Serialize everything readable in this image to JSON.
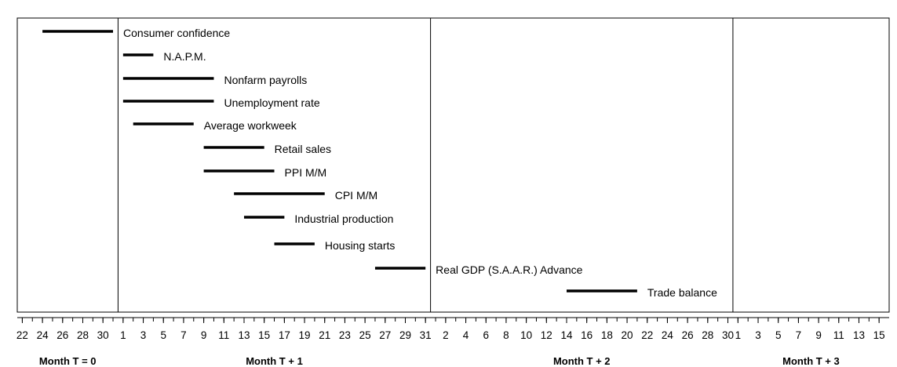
{
  "chart_data": {
    "type": "timeline",
    "color": "#000000",
    "bars": [
      {
        "name": "Consumer confidence",
        "start": 2,
        "end": 9
      },
      {
        "name": "N.A.P.M.",
        "start": 10,
        "end": 13
      },
      {
        "name": "Nonfarm payrolls",
        "start": 10,
        "end": 19
      },
      {
        "name": "Unemployment rate",
        "start": 10,
        "end": 19
      },
      {
        "name": "Average workweek",
        "start": 11,
        "end": 17
      },
      {
        "name": "Retail sales",
        "start": 18,
        "end": 24
      },
      {
        "name": "PPI M/M",
        "start": 18,
        "end": 25
      },
      {
        "name": "CPI M/M",
        "start": 21,
        "end": 30
      },
      {
        "name": "Industrial production",
        "start": 22,
        "end": 26
      },
      {
        "name": "Housing starts",
        "start": 25,
        "end": 29
      },
      {
        "name": "Real GDP (S.A.A.R.)  Advance",
        "start": 35,
        "end": 40
      },
      {
        "name": "Trade balance",
        "start": 54,
        "end": 61
      }
    ],
    "xlim": [
      -0.5,
      86
    ],
    "month_boundaries": [
      9.5,
      40.5,
      70.5
    ],
    "months": [
      "Month  T = 0",
      "Month  T + 1",
      "Month  T + 2",
      "Month  T + 3"
    ],
    "xminorticks": [
      0,
      1,
      2,
      3,
      4,
      5,
      6,
      7,
      8,
      9,
      10,
      11,
      12,
      13,
      14,
      15,
      16,
      17,
      18,
      19,
      20,
      21,
      22,
      23,
      24,
      25,
      26,
      27,
      28,
      29,
      30,
      31,
      32,
      33,
      34,
      35,
      36,
      37,
      38,
      39,
      40,
      41,
      42,
      43,
      44,
      45,
      46,
      47,
      48,
      49,
      50,
      51,
      52,
      53,
      54,
      55,
      56,
      57,
      58,
      59,
      60,
      61,
      62,
      63,
      64,
      65,
      66,
      67,
      68,
      69,
      70,
      71,
      72,
      73,
      74,
      75,
      76,
      77,
      78,
      79,
      80,
      81,
      82,
      83,
      84,
      85
    ],
    "xticks": [
      {
        "value": 0,
        "label": "22"
      },
      {
        "value": 2,
        "label": "24"
      },
      {
        "value": 4,
        "label": "26"
      },
      {
        "value": 6,
        "label": "28"
      },
      {
        "value": 8,
        "label": "30"
      },
      {
        "value": 10,
        "label": "1"
      },
      {
        "value": 12,
        "label": "3"
      },
      {
        "value": 14,
        "label": "5"
      },
      {
        "value": 16,
        "label": "7"
      },
      {
        "value": 18,
        "label": "9"
      },
      {
        "value": 20,
        "label": "11"
      },
      {
        "value": 22,
        "label": "13"
      },
      {
        "value": 24,
        "label": "15"
      },
      {
        "value": 26,
        "label": "17"
      },
      {
        "value": 28,
        "label": "19"
      },
      {
        "value": 30,
        "label": "21"
      },
      {
        "value": 32,
        "label": "23"
      },
      {
        "value": 34,
        "label": "25"
      },
      {
        "value": 36,
        "label": "27"
      },
      {
        "value": 38,
        "label": "29"
      },
      {
        "value": 40,
        "label": "31"
      },
      {
        "value": 42,
        "label": "2"
      },
      {
        "value": 44,
        "label": "4"
      },
      {
        "value": 46,
        "label": "6"
      },
      {
        "value": 48,
        "label": "8"
      },
      {
        "value": 50,
        "label": "10"
      },
      {
        "value": 52,
        "label": "12"
      },
      {
        "value": 54,
        "label": "14"
      },
      {
        "value": 56,
        "label": "16"
      },
      {
        "value": 58,
        "label": "18"
      },
      {
        "value": 60,
        "label": "20"
      },
      {
        "value": 62,
        "label": "22"
      },
      {
        "value": 64,
        "label": "24"
      },
      {
        "value": 66,
        "label": "26"
      },
      {
        "value": 68,
        "label": "28"
      },
      {
        "value": 70,
        "label": "30"
      },
      {
        "value": 71,
        "label": "1"
      },
      {
        "value": 73,
        "label": "3"
      },
      {
        "value": 75,
        "label": "5"
      },
      {
        "value": 77,
        "label": "7"
      },
      {
        "value": 79,
        "label": "9"
      },
      {
        "value": 81,
        "label": "11"
      },
      {
        "value": 83,
        "label": "13"
      },
      {
        "value": 85,
        "label": "15"
      }
    ]
  }
}
